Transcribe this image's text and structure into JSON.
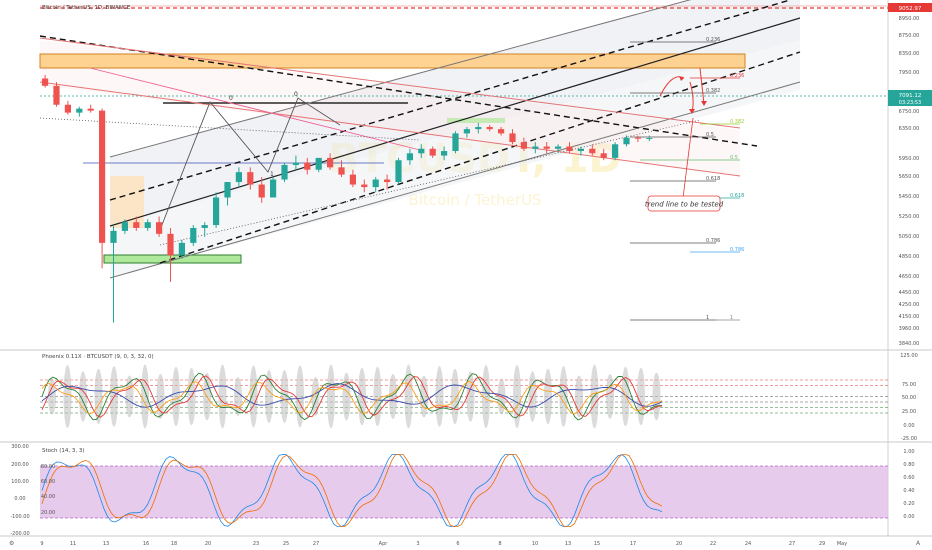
{
  "header": {
    "symbol_line": "Bitcoin / TetherUS, 1D, BINANCE",
    "watermark_pair": "BTCUSDT, 1D",
    "watermark_name": "Bitcoin / TetherUS"
  },
  "price_axis": {
    "labels": [
      "8950.00",
      "8750.00",
      "8350.00",
      "7950.00",
      "7550.00",
      "6750.00",
      "6350.00",
      "5950.00",
      "5650.00",
      "5450.00",
      "5250.00",
      "5050.00",
      "4850.00",
      "4650.00",
      "4450.00",
      "4250.00",
      "4150.00",
      "3960.00",
      "3840.00",
      "3700.00",
      "3570.00"
    ],
    "top_tag": "9052.97",
    "current_price": "7091.12",
    "countdown": "03:23:53",
    "accent_color": "#26a69a",
    "top_tag_color": "#e53935"
  },
  "time_axis": {
    "labels": [
      "9",
      "11",
      "13",
      "16",
      "18",
      "20",
      "23",
      "25",
      "27",
      "Apr",
      "3",
      "6",
      "8",
      "10",
      "13",
      "15",
      "17",
      "20",
      "22",
      "24",
      "27",
      "29",
      "May"
    ]
  },
  "fib_levels": [
    {
      "label": "0.236",
      "color": "#555555"
    },
    {
      "label": "0.236",
      "color": "#e53935"
    },
    {
      "label": "0.382",
      "color": "#555555"
    },
    {
      "label": "0.382",
      "color": "#9acd32"
    },
    {
      "label": "0.5",
      "color": "#555555"
    },
    {
      "label": "0.5",
      "color": "#66bb6a"
    },
    {
      "label": "0.618",
      "color": "#555555"
    },
    {
      "label": "0.618",
      "color": "#26a69a"
    },
    {
      "label": "0.786",
      "color": "#555555"
    },
    {
      "label": "0.786",
      "color": "#42a5f5"
    },
    {
      "label": "1",
      "color": "#555555"
    },
    {
      "label": "1",
      "color": "#888888"
    }
  ],
  "markers": [
    "0",
    "0",
    "1"
  ],
  "annotation": {
    "text": "trend line to be tested"
  },
  "phoenix": {
    "title": "Phoenix 0.11X · BTCUSDT (9, 0, 3, 32, 0)",
    "axis": [
      "125.00",
      "75.00",
      "50.00",
      "25.00",
      "0.00",
      "-25.00"
    ]
  },
  "stoch": {
    "title": "Stoch (14, 3, 3)",
    "left_axis": [
      "300.00",
      "200.00",
      "100.00",
      "0.00",
      "-100.00",
      "-200.00"
    ],
    "inner_axis": [
      "80.00",
      "60.00",
      "40.00",
      "20.00"
    ],
    "right_axis": [
      "1.00",
      "0.80",
      "0.60",
      "0.40",
      "0.20",
      "0.00"
    ],
    "band_color": "#e1bee7"
  },
  "chart_data": {
    "type": "candlestick",
    "title": "Bitcoin / TetherUS, 1D, BINANCE",
    "series": [
      {
        "name": "BTCUSDT",
        "values": [
          [
            8600,
            8700,
            8350,
            8400
          ],
          [
            8400,
            8500,
            7850,
            7900
          ],
          [
            7900,
            8000,
            7650,
            7700
          ],
          [
            7700,
            7850,
            7600,
            7800
          ],
          [
            7800,
            7900,
            7700,
            7750
          ],
          [
            7750,
            7800,
            4650,
            5050
          ],
          [
            5050,
            5350,
            3900,
            5250
          ],
          [
            5250,
            5450,
            5200,
            5400
          ],
          [
            5400,
            5500,
            5250,
            5300
          ],
          [
            5300,
            5450,
            5250,
            5400
          ],
          [
            5400,
            5500,
            5150,
            5200
          ],
          [
            5200,
            5300,
            4450,
            4850
          ],
          [
            4850,
            5100,
            4800,
            5050
          ],
          [
            5050,
            5350,
            5000,
            5300
          ],
          [
            5300,
            5400,
            5150,
            5350
          ],
          [
            5350,
            5950,
            5300,
            5850
          ],
          [
            5850,
            6150,
            5700,
            6150
          ],
          [
            6150,
            6450,
            6050,
            6350
          ],
          [
            6350,
            6450,
            6000,
            6100
          ],
          [
            6100,
            6250,
            5750,
            5850
          ],
          [
            5850,
            6250,
            5850,
            6200
          ],
          [
            6200,
            6550,
            6150,
            6500
          ],
          [
            6500,
            6700,
            6400,
            6550
          ],
          [
            6550,
            6650,
            6300,
            6400
          ],
          [
            6400,
            6650,
            6350,
            6650
          ],
          [
            6650,
            6750,
            6400,
            6450
          ],
          [
            6450,
            6600,
            6250,
            6300
          ],
          [
            6300,
            6400,
            6050,
            6100
          ],
          [
            6100,
            6200,
            5950,
            6050
          ],
          [
            6050,
            6250,
            5950,
            6200
          ],
          [
            6200,
            6300,
            6000,
            6150
          ],
          [
            6150,
            6650,
            6100,
            6600
          ],
          [
            6600,
            6850,
            6500,
            6750
          ],
          [
            6750,
            6950,
            6650,
            6850
          ],
          [
            6850,
            6900,
            6650,
            6700
          ],
          [
            6700,
            6900,
            6600,
            6800
          ],
          [
            6800,
            7250,
            6750,
            7200
          ],
          [
            7200,
            7350,
            7100,
            7300
          ],
          [
            7300,
            7450,
            7200,
            7350
          ],
          [
            7350,
            7400,
            7250,
            7300
          ],
          [
            7300,
            7350,
            7150,
            7200
          ],
          [
            7200,
            7300,
            6950,
            7000
          ],
          [
            7000,
            7100,
            6800,
            6850
          ],
          [
            6850,
            7000,
            6750,
            6900
          ],
          [
            6900,
            7000,
            6750,
            6850
          ],
          [
            6850,
            6950,
            6750,
            6900
          ],
          [
            6900,
            7000,
            6750,
            6800
          ],
          [
            6800,
            6900,
            6700,
            6850
          ],
          [
            6850,
            6950,
            6700,
            6750
          ],
          [
            6750,
            6850,
            6600,
            6650
          ],
          [
            6650,
            7000,
            6600,
            6950
          ],
          [
            6950,
            7150,
            6900,
            7100
          ],
          [
            7100,
            7150,
            7000,
            7080
          ],
          [
            7080,
            7150,
            7020,
            7091
          ]
        ]
      }
    ],
    "x_labels": [
      "9",
      "11",
      "13",
      "16",
      "18",
      "20",
      "23",
      "25",
      "27",
      "Apr",
      "3",
      "6",
      "8",
      "10",
      "13",
      "15",
      "17",
      "20",
      "22",
      "24",
      "27",
      "29",
      "May"
    ],
    "ylim": [
      3500,
      9100
    ],
    "y_scale": "log",
    "grid": false,
    "legend": "none"
  }
}
